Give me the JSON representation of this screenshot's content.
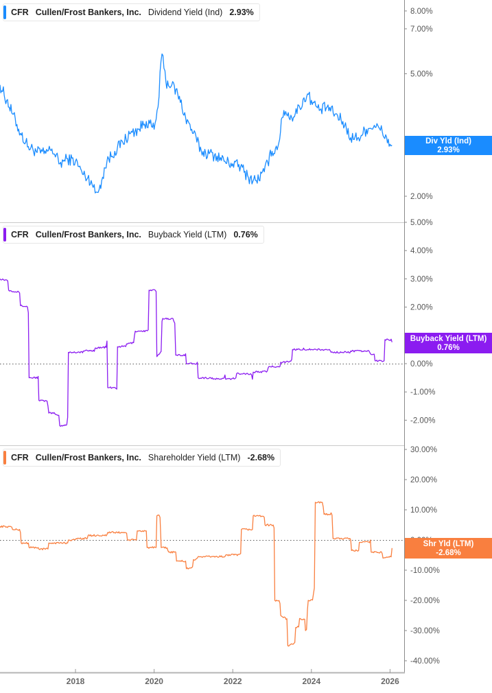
{
  "chart_data": [
    {
      "type": "line",
      "panel": "top",
      "title": "CFR  Cullen/Frost Bankers, Inc.  Dividend Yield (Ind)  2.93%",
      "legend": {
        "ticker": "CFR",
        "company": "Cullen/Frost Bankers, Inc.",
        "metric": "Dividend Yield (Ind)",
        "value": "2.93%"
      },
      "badge": {
        "label": "Div Yld (Ind)",
        "value": "2.93%"
      },
      "color": "#1a8cff",
      "yscale": "log",
      "ylim": [
        1.75,
        9.0
      ],
      "yticks": [
        "8.00%",
        "7.00%",
        "5.00%",
        "3.00%",
        "2.00%"
      ],
      "ytick_values": [
        8,
        7,
        5,
        3,
        2
      ],
      "x": [
        2016.08,
        2016.25,
        2016.4,
        2016.6,
        2016.8,
        2017.0,
        2017.2,
        2017.4,
        2017.6,
        2017.8,
        2018.0,
        2018.2,
        2018.4,
        2018.5,
        2018.6,
        2018.8,
        2019.0,
        2019.2,
        2019.4,
        2019.6,
        2019.8,
        2020.0,
        2020.1,
        2020.2,
        2020.3,
        2020.45,
        2020.6,
        2020.8,
        2021.0,
        2021.2,
        2021.4,
        2021.6,
        2021.8,
        2022.0,
        2022.2,
        2022.4,
        2022.6,
        2022.8,
        2023.0,
        2023.15,
        2023.3,
        2023.5,
        2023.7,
        2023.9,
        2024.0,
        2024.2,
        2024.4,
        2024.6,
        2024.8,
        2025.0,
        2025.2,
        2025.4,
        2025.6,
        2025.8,
        2026.0,
        2026.05
      ],
      "values": [
        4.6,
        4.1,
        3.7,
        3.2,
        2.9,
        2.8,
        2.75,
        2.85,
        2.55,
        2.65,
        2.6,
        2.35,
        2.25,
        2.05,
        2.1,
        2.6,
        2.8,
        3.0,
        3.2,
        3.3,
        3.5,
        3.3,
        3.9,
        5.8,
        4.7,
        4.6,
        4.3,
        3.6,
        3.2,
        2.8,
        2.75,
        2.7,
        2.6,
        2.55,
        2.5,
        2.3,
        2.25,
        2.4,
        2.8,
        2.9,
        3.8,
        3.6,
        3.9,
        4.3,
        4.1,
        3.8,
        3.9,
        3.7,
        3.5,
        3.1,
        3.1,
        3.3,
        3.4,
        3.25,
        2.95,
        2.93
      ]
    },
    {
      "type": "line",
      "panel": "middle",
      "title": "CFR  Cullen/Frost Bankers, Inc.  Buyback Yield (LTM)  0.76%",
      "legend": {
        "ticker": "CFR",
        "company": "Cullen/Frost Bankers, Inc.",
        "metric": "Buyback Yield (LTM)",
        "value": "0.76%"
      },
      "badge": {
        "label": "Buyback Yield (LTM)",
        "value": "0.76%"
      },
      "color": "#8b1cf0",
      "yscale": "linear",
      "ylim": [
        -2.25,
        5.0
      ],
      "yticks": [
        "5.00%",
        "4.00%",
        "3.00%",
        "2.00%",
        "0.00%",
        "-1.00%",
        "-2.00%"
      ],
      "ytick_values": [
        5,
        4,
        3,
        2,
        0,
        -1,
        -2
      ],
      "zero_line": true,
      "x": [
        2016.08,
        2016.3,
        2016.6,
        2016.8,
        2016.82,
        2017.05,
        2017.07,
        2017.3,
        2017.32,
        2017.5,
        2017.6,
        2017.8,
        2017.82,
        2018.2,
        2018.5,
        2018.8,
        2018.82,
        2019.05,
        2019.07,
        2019.3,
        2019.5,
        2019.52,
        2019.85,
        2019.87,
        2020.05,
        2020.07,
        2020.2,
        2020.22,
        2020.5,
        2020.55,
        2020.8,
        2020.82,
        2021.0,
        2021.1,
        2021.12,
        2021.5,
        2021.8,
        2021.82,
        2022.1,
        2022.3,
        2022.5,
        2022.52,
        2022.9,
        2022.92,
        2023.2,
        2023.22,
        2023.5,
        2023.52,
        2023.8,
        2023.82,
        2024.0,
        2024.02,
        2024.5,
        2025.0,
        2025.5,
        2025.62,
        2025.64,
        2025.85,
        2025.87,
        2026.05
      ],
      "values": [
        3.0,
        2.6,
        2.05,
        1.8,
        -0.5,
        -0.45,
        -1.3,
        -1.5,
        -1.75,
        -1.8,
        -2.2,
        -1.9,
        0.4,
        0.45,
        0.55,
        0.8,
        -0.85,
        -0.9,
        0.6,
        0.7,
        1.0,
        1.15,
        1.2,
        2.6,
        2.55,
        0.25,
        1.5,
        1.6,
        1.5,
        0.3,
        0.35,
        0.0,
        0.0,
        0.05,
        -0.5,
        -0.55,
        -0.4,
        -0.55,
        -0.35,
        -0.35,
        -0.55,
        -0.3,
        -0.15,
        -0.1,
        -0.1,
        0.05,
        0.15,
        0.5,
        0.55,
        0.5,
        0.5,
        0.5,
        0.4,
        0.45,
        0.35,
        0.1,
        0.1,
        0.1,
        0.85,
        0.76
      ]
    },
    {
      "type": "line",
      "panel": "bottom",
      "title": "CFR  Cullen/Frost Bankers, Inc.  Shareholder Yield (LTM)  -2.68%",
      "legend": {
        "ticker": "CFR",
        "company": "Cullen/Frost Bankers, Inc.",
        "metric": "Shareholder Yield (LTM)",
        "value": "-2.68%"
      },
      "badge": {
        "label": "Shr Yld (LTM)",
        "value": "-2.68%"
      },
      "color": "#f97f3f",
      "yscale": "linear",
      "ylim": [
        -40.0,
        30.0
      ],
      "yticks": [
        "30.00%",
        "20.00%",
        "10.00%",
        "0.00%",
        "-10.00%",
        "-20.00%",
        "-30.00%",
        "-40.00%"
      ],
      "ytick_values": [
        30,
        20,
        10,
        0,
        -10,
        -20,
        -30,
        -40
      ],
      "zero_line": true,
      "x": [
        2016.08,
        2016.4,
        2016.6,
        2016.62,
        2016.8,
        2016.82,
        2017.05,
        2017.07,
        2017.3,
        2017.32,
        2017.8,
        2017.82,
        2018.0,
        2018.02,
        2018.3,
        2018.32,
        2018.8,
        2018.82,
        2019.3,
        2019.32,
        2019.55,
        2019.57,
        2019.8,
        2019.82,
        2020.05,
        2020.07,
        2020.15,
        2020.18,
        2020.35,
        2020.37,
        2020.55,
        2020.57,
        2020.8,
        2020.82,
        2021.0,
        2021.1,
        2021.12,
        2021.5,
        2021.8,
        2021.82,
        2022.2,
        2022.22,
        2022.5,
        2022.52,
        2022.8,
        2022.82,
        2023.05,
        2023.07,
        2023.2,
        2023.22,
        2023.4,
        2023.6,
        2023.7,
        2023.85,
        2023.9,
        2023.92,
        2024.05,
        2024.1,
        2024.3,
        2024.32,
        2024.5,
        2024.55,
        2024.57,
        2025.0,
        2025.02,
        2025.2,
        2025.22,
        2025.5,
        2025.52,
        2025.8,
        2025.82,
        2026.05
      ],
      "values": [
        4.5,
        3.5,
        2.5,
        -1.0,
        -1.0,
        -2.5,
        -2.5,
        -3.0,
        -3.0,
        -1.0,
        -1.0,
        0.0,
        0.2,
        0.5,
        0.5,
        1.5,
        1.8,
        2.5,
        2.3,
        0.0,
        0.0,
        3.0,
        3.0,
        -2.5,
        -2.5,
        8.0,
        7.5,
        -2.5,
        -3.5,
        -4.0,
        -4.0,
        -7.0,
        -7.0,
        -9.5,
        -6.5,
        -6.0,
        -5.5,
        -5.5,
        -5.5,
        -5.0,
        -4.5,
        3.5,
        3.5,
        8.0,
        7.5,
        5.0,
        4.0,
        -20.0,
        -21.0,
        -25.0,
        -35.0,
        -29.0,
        -26.0,
        -30.0,
        -23.0,
        -20.0,
        -18.0,
        12.5,
        11.0,
        8.5,
        9.0,
        0.5,
        0.5,
        0.0,
        -3.5,
        -3.5,
        -0.8,
        0.0,
        -4.0,
        -4.5,
        -6.0,
        -2.68
      ]
    }
  ],
  "x_axis": {
    "ticks": [
      "2018",
      "2020",
      "2022",
      "2024",
      "2026"
    ],
    "tick_values": [
      2018,
      2020,
      2022,
      2024,
      2026
    ],
    "range": [
      2016.08,
      2026.35
    ]
  }
}
